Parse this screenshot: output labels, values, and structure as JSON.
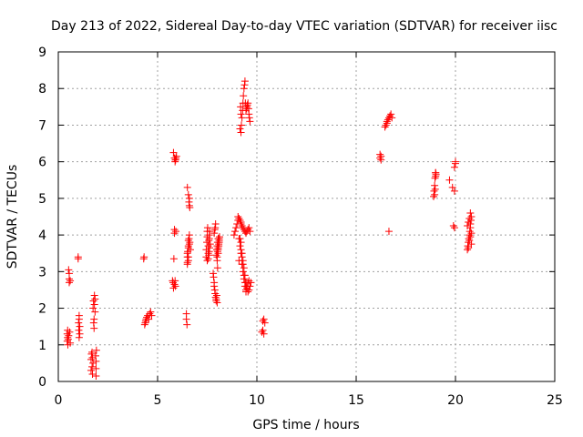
{
  "colors": {
    "points": "#ff0000",
    "grid": "#a0a0a0",
    "frame": "#000000"
  },
  "chart_data": {
    "type": "scatter",
    "title": "Day 213 of 2022, Sidereal Day-to-day VTEC variation (SDTVAR) for receiver iisc",
    "xlabel": "GPS time / hours",
    "ylabel": "SDTVAR / TECUs",
    "xlim": [
      0,
      25
    ],
    "ylim": [
      0,
      9
    ],
    "grid": true,
    "marker": "plus",
    "xticks": [
      0,
      5,
      10,
      15,
      20,
      25
    ],
    "yticks": [
      0,
      1,
      2,
      3,
      4,
      5,
      6,
      7,
      8,
      9
    ],
    "xtick_labels": [
      "0",
      "5",
      "10",
      "15",
      "20",
      "25"
    ],
    "ytick_labels": [
      "0",
      "1",
      "2",
      "3",
      "4",
      "5",
      "6",
      "7",
      "8",
      "9"
    ],
    "series": [
      {
        "name": "SDTVAR",
        "color": "#ff0000",
        "x": [
          0.45,
          0.45,
          0.47,
          0.47,
          0.48,
          0.5,
          0.52,
          0.52,
          0.55,
          0.55,
          0.55,
          0.57,
          0.6,
          0.6,
          1.0,
          1.0,
          1.02,
          1.03,
          1.05,
          1.05,
          1.05,
          1.08,
          1.08,
          1.65,
          1.65,
          1.67,
          1.7,
          1.7,
          1.72,
          1.72,
          1.75,
          1.75,
          1.77,
          1.78,
          1.8,
          1.8,
          1.82,
          1.82,
          1.85,
          1.85,
          1.88,
          1.9,
          1.9,
          1.9,
          1.92,
          4.3,
          4.32,
          4.35,
          4.38,
          4.4,
          4.42,
          4.45,
          4.5,
          4.55,
          4.6,
          4.65,
          4.7,
          5.75,
          5.78,
          5.8,
          5.82,
          5.85,
          5.85,
          5.88,
          5.9,
          5.92,
          5.95,
          5.8,
          5.85,
          5.9,
          5.85,
          5.88,
          5.9,
          5.92,
          6.45,
          6.45,
          6.48,
          6.5,
          6.5,
          6.52,
          6.55,
          6.55,
          6.58,
          6.6,
          6.6,
          6.62,
          6.65,
          6.5,
          6.55,
          6.6,
          6.6,
          6.58,
          6.62,
          6.55,
          6.5,
          6.55,
          6.5,
          6.55,
          7.45,
          7.45,
          7.48,
          7.5,
          7.5,
          7.52,
          7.55,
          7.55,
          7.58,
          7.6,
          7.6,
          7.62,
          7.65,
          7.5,
          7.55,
          7.58,
          7.6,
          7.62,
          7.8,
          7.82,
          7.85,
          7.85,
          7.88,
          7.9,
          7.92,
          7.95,
          7.95,
          7.98,
          8.0,
          8.02,
          8.05,
          8.05,
          8.08,
          8.1,
          8.1,
          8.0,
          8.02,
          8.05,
          8.08,
          8.1,
          8.12,
          7.85,
          7.88,
          7.9,
          7.92,
          7.95,
          7.98,
          8.0,
          8.02,
          8.05,
          8.0,
          8.85,
          8.9,
          8.95,
          9.0,
          9.05,
          9.05,
          9.1,
          9.1,
          9.15,
          9.15,
          9.2,
          9.2,
          9.25,
          9.3,
          9.35,
          9.4,
          9.45,
          9.5,
          9.55,
          9.6,
          9.65,
          9.1,
          9.15,
          9.2,
          9.25,
          9.3,
          9.35,
          9.4,
          9.45,
          9.2,
          9.25,
          9.3,
          9.35,
          9.4,
          9.45,
          9.5,
          9.55,
          9.6,
          9.65,
          9.7,
          9.2,
          9.25,
          9.3,
          9.35,
          9.4,
          9.45,
          9.5,
          9.55,
          9.6,
          9.2,
          9.22,
          9.25,
          9.28,
          9.3,
          9.32,
          9.35,
          9.38,
          9.4,
          9.42,
          9.45,
          9.48,
          9.5,
          9.52,
          9.55,
          9.58,
          9.6,
          9.62,
          9.65,
          9.15,
          9.18,
          9.2,
          10.25,
          10.3,
          10.3,
          10.35,
          10.35,
          10.4,
          16.2,
          16.2,
          16.25,
          16.25,
          16.45,
          16.5,
          16.55,
          16.55,
          16.6,
          16.65,
          16.7,
          16.75,
          16.8,
          16.65,
          18.9,
          18.92,
          18.95,
          18.97,
          19.0,
          19.0,
          19.02,
          18.95,
          18.98,
          19.0,
          19.7,
          19.85,
          19.9,
          19.95,
          19.95,
          20.0,
          20.0,
          19.95,
          20.6,
          20.62,
          20.65,
          20.67,
          20.7,
          20.72,
          20.75,
          20.75,
          20.78,
          20.8,
          20.6,
          20.65,
          20.7,
          20.75,
          20.8,
          20.65,
          20.7,
          20.75,
          20.8
        ],
        "y": [
          1.1,
          1.3,
          1.4,
          1.2,
          1.0,
          1.15,
          1.25,
          3.05,
          2.95,
          2.8,
          2.7,
          1.35,
          1.05,
          2.75,
          3.35,
          3.4,
          1.6,
          1.4,
          1.8,
          1.7,
          1.2,
          1.5,
          1.3,
          0.3,
          0.6,
          0.75,
          0.8,
          0.4,
          0.2,
          0.65,
          0.5,
          2.0,
          2.2,
          1.6,
          1.7,
          1.45,
          2.35,
          2.1,
          1.9,
          2.25,
          0.7,
          0.35,
          0.15,
          0.55,
          0.85,
          3.35,
          3.4,
          1.55,
          1.6,
          1.65,
          1.7,
          1.75,
          1.8,
          1.7,
          1.85,
          1.9,
          1.8,
          2.75,
          2.7,
          2.55,
          3.35,
          4.05,
          4.15,
          6.0,
          6.05,
          6.1,
          6.15,
          6.25,
          6.1,
          6.05,
          2.65,
          2.75,
          2.6,
          4.1,
          1.85,
          1.7,
          1.55,
          3.25,
          3.4,
          3.55,
          3.7,
          3.85,
          3.9,
          4.0,
          3.75,
          3.8,
          3.6,
          5.3,
          5.1,
          5.0,
          4.8,
          4.9,
          4.75,
          3.3,
          3.2,
          3.4,
          3.5,
          3.65,
          3.4,
          3.6,
          3.8,
          3.95,
          4.1,
          4.2,
          3.5,
          3.7,
          3.85,
          3.9,
          4.0,
          4.1,
          3.75,
          3.3,
          3.35,
          3.45,
          3.55,
          3.65,
          2.95,
          2.85,
          2.7,
          2.6,
          2.5,
          2.4,
          2.3,
          2.2,
          2.25,
          2.35,
          2.15,
          3.1,
          3.5,
          3.6,
          3.7,
          3.8,
          3.9,
          3.4,
          3.55,
          3.65,
          3.75,
          3.85,
          3.95,
          4.05,
          4.15,
          4.2,
          4.3,
          3.45,
          3.6,
          3.7,
          3.8,
          3.9,
          3.3,
          4.0,
          4.1,
          4.2,
          4.3,
          4.4,
          4.5,
          4.45,
          3.3,
          3.9,
          4.4,
          4.35,
          4.3,
          4.25,
          4.2,
          4.15,
          4.1,
          4.05,
          4.1,
          4.15,
          4.2,
          4.1,
          3.9,
          3.7,
          3.5,
          3.2,
          3.0,
          2.8,
          2.6,
          2.45,
          3.6,
          3.4,
          3.2,
          2.9,
          2.7,
          2.5,
          2.6,
          2.7,
          2.75,
          2.6,
          2.7,
          3.8,
          3.5,
          3.3,
          3.1,
          2.9,
          2.7,
          2.55,
          2.45,
          2.5,
          6.8,
          7.0,
          7.2,
          7.4,
          7.6,
          7.8,
          8.0,
          8.1,
          8.2,
          7.6,
          7.4,
          7.45,
          7.5,
          7.55,
          7.6,
          7.45,
          7.3,
          7.2,
          7.1,
          6.9,
          7.5,
          7.3,
          1.35,
          1.4,
          1.65,
          1.7,
          1.3,
          1.6,
          6.1,
          6.2,
          6.15,
          6.05,
          6.95,
          7.0,
          7.05,
          7.1,
          7.15,
          7.2,
          7.25,
          7.3,
          7.2,
          4.1,
          5.05,
          5.2,
          5.35,
          5.55,
          5.6,
          5.7,
          5.65,
          5.1,
          5.25,
          5.7,
          5.5,
          5.3,
          4.25,
          4.2,
          5.85,
          5.95,
          6.0,
          5.2,
          3.6,
          3.7,
          3.8,
          3.9,
          4.0,
          4.1,
          4.2,
          4.3,
          4.4,
          4.5,
          4.25,
          4.35,
          4.45,
          4.6,
          3.75,
          3.65,
          3.85,
          3.95,
          4.05
        ]
      }
    ]
  }
}
